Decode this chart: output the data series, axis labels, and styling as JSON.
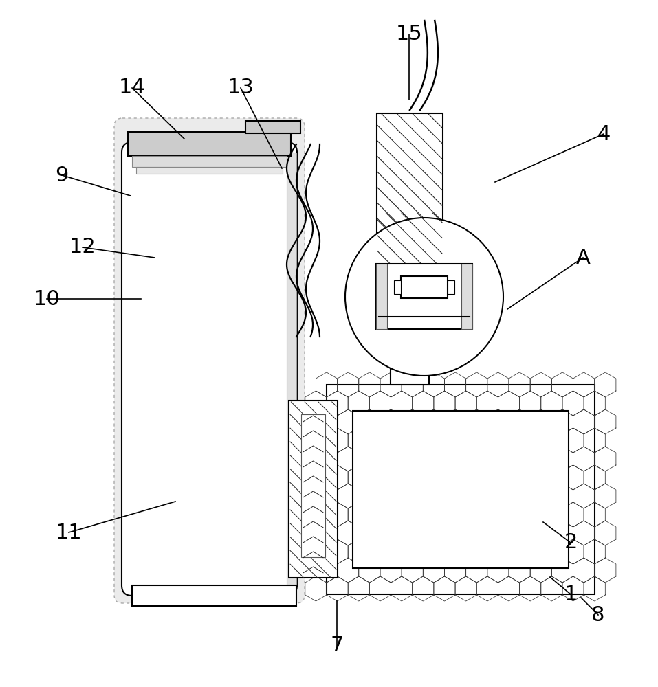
{
  "bg_color": "#ffffff",
  "lc": "#000000",
  "lw": 1.5,
  "lwt": 0.8,
  "gray_fill": "#cccccc",
  "light_gray_fill": "#e8e8e8",
  "dot_gray": "#bbbbbb",
  "figsize": [
    9.57,
    10.0
  ],
  "dpi": 100,
  "labels": [
    [
      "1",
      830,
      865,
      800,
      840
    ],
    [
      "2",
      830,
      790,
      790,
      760
    ],
    [
      "4",
      878,
      195,
      720,
      265
    ],
    [
      "7",
      490,
      940,
      490,
      875
    ],
    [
      "8",
      870,
      895,
      845,
      870
    ],
    [
      "9",
      90,
      255,
      190,
      285
    ],
    [
      "10",
      68,
      435,
      205,
      435
    ],
    [
      "11",
      100,
      775,
      255,
      730
    ],
    [
      "12",
      120,
      360,
      225,
      375
    ],
    [
      "13",
      350,
      128,
      410,
      245
    ],
    [
      "14",
      192,
      128,
      268,
      202
    ],
    [
      "15",
      595,
      50,
      595,
      145
    ],
    [
      "A",
      848,
      375,
      738,
      450
    ]
  ]
}
